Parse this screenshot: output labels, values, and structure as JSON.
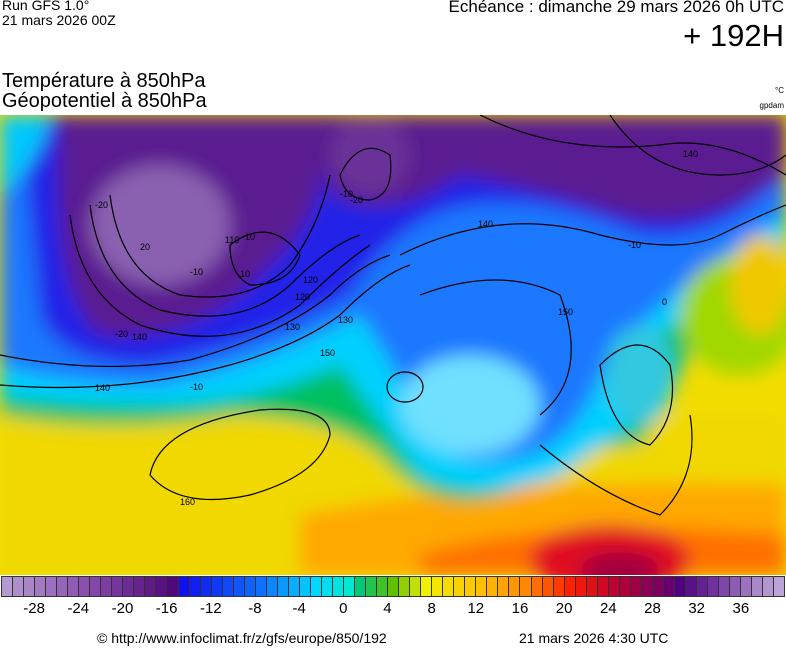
{
  "header": {
    "run": "Run GFS 1.0°",
    "run_date": "21 mars 2026 00Z",
    "echeance": "Echéance : dimanche 29 mars 2026 0h UTC",
    "hour": "+ 192H",
    "title_temp": "Température à 850hPa",
    "title_geo": "Géopotentiel à 850hPa",
    "unit_temp": "°C",
    "unit_geo": "gpdam"
  },
  "contour_labels": [
    "140",
    "150",
    "160",
    "130",
    "120",
    "110",
    "150",
    "140",
    "140",
    "130",
    "140",
    "120",
    "-20",
    "-10",
    "10",
    "-10",
    "-20",
    "-10",
    "-20",
    "0",
    "-10",
    "20",
    "10"
  ],
  "legend": {
    "min": -31,
    "max": 40,
    "ticks": [
      "-28",
      "-24",
      "-20",
      "-16",
      "-12",
      "-8",
      "-4",
      "0",
      "4",
      "8",
      "12",
      "16",
      "20",
      "24",
      "28",
      "32",
      "36"
    ],
    "tick_values": [
      -28,
      -24,
      -20,
      -16,
      -12,
      -8,
      -4,
      0,
      4,
      8,
      12,
      16,
      20,
      24,
      28,
      32,
      36
    ],
    "color_anchors": [
      [
        -31,
        "#b39ad0"
      ],
      [
        -24,
        "#8a50b0"
      ],
      [
        -16,
        "#50087a"
      ],
      [
        -15,
        "#1010f0"
      ],
      [
        -8,
        "#1070ff"
      ],
      [
        -3,
        "#00d8ff"
      ],
      [
        0,
        "#00e8d0"
      ],
      [
        1,
        "#00c878"
      ],
      [
        4,
        "#60c000"
      ],
      [
        7,
        "#f0f000"
      ],
      [
        12,
        "#ffc000"
      ],
      [
        16,
        "#ff8800"
      ],
      [
        20,
        "#ff2000"
      ],
      [
        24,
        "#c00030"
      ],
      [
        28,
        "#800060"
      ],
      [
        30,
        "#500080"
      ],
      [
        33,
        "#7030a0"
      ],
      [
        37,
        "#a888c8"
      ],
      [
        40,
        "#c8b0e0"
      ]
    ]
  },
  "footer": {
    "copyright": "© http://www.infoclimat.fr/z/gfs/europe/850/192",
    "generated": "21 mars 2026  4:30 UTC"
  }
}
